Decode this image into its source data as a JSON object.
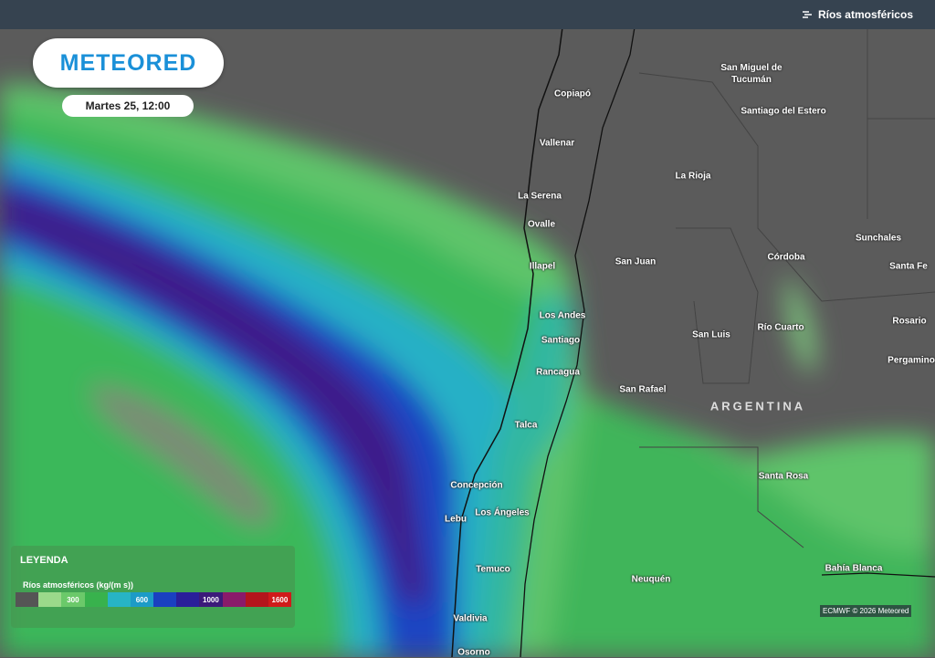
{
  "header": {
    "title": "Ríos atmosféricos"
  },
  "logo": "METEORED",
  "date": "Martes 25, 12:00",
  "map": {
    "country": "ARGENTINA",
    "cities": [
      "Copiapó",
      "Vallenar",
      "La Serena",
      "Ovalle",
      "Illapel",
      "Los Andes",
      "Santiago",
      "Rancagua",
      "Talca",
      "Concepción",
      "Lebu",
      "Los Ángeles",
      "Temuco",
      "Valdivia",
      "Osorno",
      "San Miguel de Tucumán",
      "Santiago del Estero",
      "La Rioja",
      "San Juan",
      "Córdoba",
      "Sunchales",
      "Santa Fe",
      "San Luis",
      "Río Cuarto",
      "Rosario",
      "Pergamino",
      "San Rafael",
      "Santa Rosa",
      "Neuquén",
      "Bahía Blanca"
    ]
  },
  "legend": {
    "title": "LEYENDA",
    "subtitle": "Ríos atmosféricos (kg/(m s))",
    "labels": [
      300,
      600,
      1000,
      1600
    ]
  },
  "credit": "ECMWF © 2026 Meteored"
}
